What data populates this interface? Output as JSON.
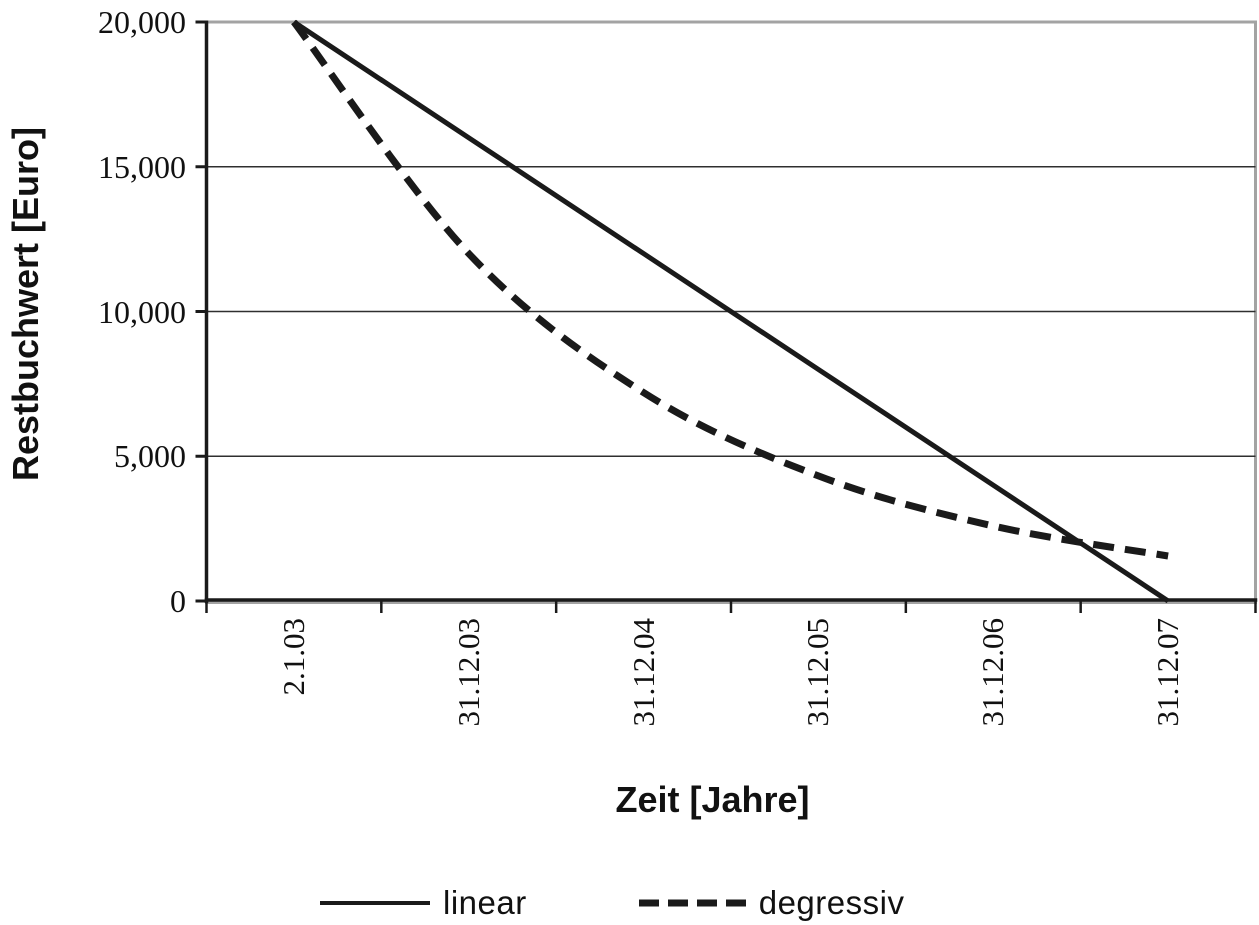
{
  "chart_data": {
    "type": "line",
    "xlabel": "Zeit [Jahre]",
    "ylabel": "Restbuchwert [Euro]",
    "categories": [
      "2.1.03",
      "31.12.03",
      "31.12.04",
      "31.12.05",
      "31.12.06",
      "31.12.07"
    ],
    "y_tick_labels": [
      "0",
      "5,000",
      "10,000",
      "15,000",
      "20,000"
    ],
    "y_tick_values": [
      0,
      5000,
      10000,
      15000,
      20000
    ],
    "ylim": [
      0,
      20000
    ],
    "grid": "horizontal",
    "legend_position": "bottom",
    "series": [
      {
        "name": "linear",
        "line_style": "solid",
        "smooth": false,
        "values": [
          20000,
          16000,
          12000,
          8000,
          4000,
          0
        ]
      },
      {
        "name": "degressiv",
        "line_style": "dashed",
        "smooth": true,
        "values": [
          20000,
          12000,
          7200,
          4320,
          2592,
          1555
        ]
      }
    ]
  },
  "colors": {
    "series_stroke": "#1a1a1a",
    "grid_line": "#2f2f2f",
    "axis_line": "#1a1a1a",
    "plot_border": "#a3a3a3",
    "text": "#111111",
    "background": "#ffffff"
  }
}
